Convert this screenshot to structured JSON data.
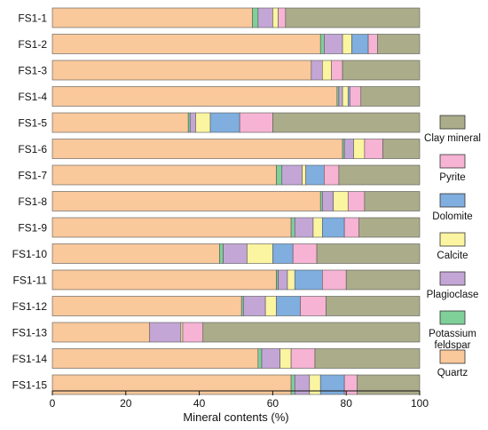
{
  "chart_data": {
    "type": "bar",
    "orientation": "horizontal",
    "stacked": true,
    "xlabel": "Mineral contents (%)",
    "xlim": [
      0,
      100
    ],
    "xticks": [
      0,
      20,
      40,
      60,
      80,
      100
    ],
    "categories": [
      "FS1-1",
      "FS1-2",
      "FS1-3",
      "FS1-4",
      "FS1-5",
      "FS1-6",
      "FS1-7",
      "FS1-8",
      "FS1-9",
      "FS1-10",
      "FS1-11",
      "FS1-12",
      "FS1-13",
      "FS1-14",
      "FS1-15"
    ],
    "legend_position": "right",
    "series": [
      {
        "name": "Quartz",
        "color": "#f9c89b",
        "values": [
          54.5,
          73.0,
          70.5,
          77.5,
          37.0,
          79.0,
          61.0,
          73.0,
          65.0,
          45.5,
          61.0,
          51.5,
          26.5,
          56.0,
          65.0
        ]
      },
      {
        "name": "Potassium feldspar",
        "color": "#7fcf99",
        "values": [
          1.5,
          1.0,
          0.0,
          0.5,
          0.5,
          0.5,
          1.5,
          0.5,
          1.0,
          1.0,
          0.5,
          0.5,
          0.0,
          1.0,
          1.0
        ]
      },
      {
        "name": "Plagioclase",
        "color": "#c3a6d6",
        "values": [
          4.0,
          5.0,
          3.0,
          1.0,
          1.5,
          2.5,
          5.5,
          3.0,
          5.0,
          6.5,
          2.5,
          6.0,
          8.5,
          5.0,
          4.0
        ]
      },
      {
        "name": "Calcite",
        "color": "#fbf4a0",
        "values": [
          1.5,
          2.5,
          2.5,
          1.5,
          4.0,
          3.0,
          1.0,
          4.0,
          2.5,
          7.0,
          2.0,
          3.0,
          0.5,
          3.0,
          3.0
        ]
      },
      {
        "name": "Dolomite",
        "color": "#7faedf",
        "values": [
          0.0,
          4.5,
          0.0,
          0.5,
          8.0,
          0.0,
          5.0,
          0.0,
          6.0,
          5.5,
          7.5,
          6.5,
          0.0,
          0.0,
          6.5
        ]
      },
      {
        "name": "Pyrite",
        "color": "#f6b3d3",
        "values": [
          2.0,
          2.5,
          3.0,
          3.0,
          9.0,
          5.0,
          4.0,
          4.5,
          4.0,
          6.5,
          6.5,
          7.0,
          5.5,
          6.5,
          3.5
        ]
      },
      {
        "name": "Clay mineral",
        "color": "#abad8a",
        "values": [
          36.5,
          11.5,
          21.0,
          16.0,
          40.0,
          10.0,
          22.0,
          15.0,
          16.5,
          28.0,
          20.0,
          25.5,
          59.0,
          28.5,
          17.0
        ]
      }
    ],
    "legend_order": [
      "Clay mineral",
      "Pyrite",
      "Dolomite",
      "Calcite",
      "Plagioclase",
      "Potassium feldspar",
      "Quartz"
    ]
  }
}
